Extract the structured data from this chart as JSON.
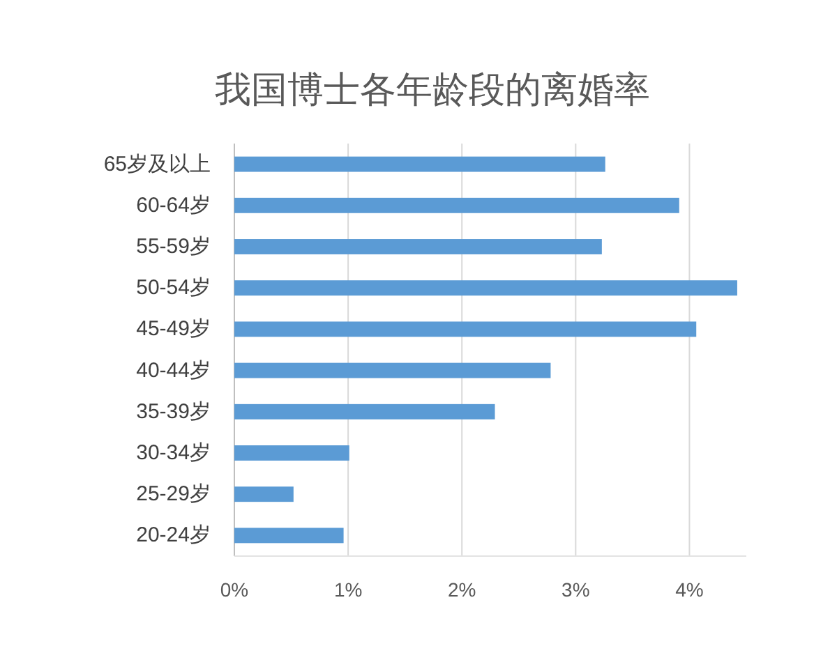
{
  "chart_data": {
    "type": "bar",
    "orientation": "horizontal",
    "title": "我国博士各年龄段的离婚率",
    "categories": [
      "65岁及以上",
      "60-64岁",
      "55-59岁",
      "50-54岁",
      "45-49岁",
      "40-44岁",
      "35-39岁",
      "30-34岁",
      "25-29岁",
      "20-24岁"
    ],
    "values": [
      3.26,
      3.91,
      3.23,
      4.42,
      4.06,
      2.78,
      2.29,
      1.01,
      0.52,
      0.96
    ],
    "color": "#5b9bd5",
    "xlim": [
      0,
      4.5
    ],
    "xticks": [
      {
        "value": 0,
        "label": "0%"
      },
      {
        "value": 1,
        "label": "1%"
      },
      {
        "value": 2,
        "label": "2%"
      },
      {
        "value": 3,
        "label": "3%"
      },
      {
        "value": 4,
        "label": "4%"
      }
    ],
    "grid": "x"
  }
}
